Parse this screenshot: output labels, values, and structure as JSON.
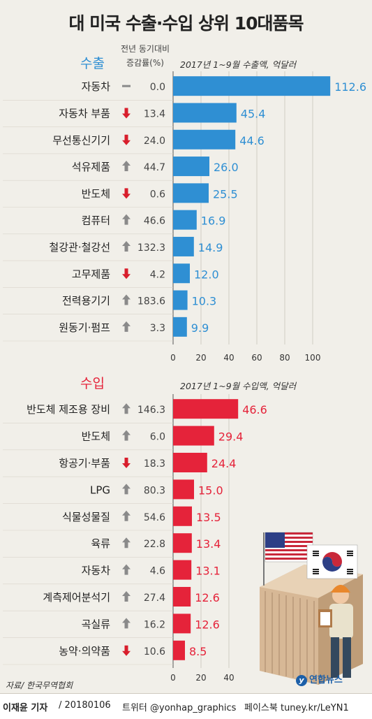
{
  "title": "대 미국 수출·수입 상위 10대품목",
  "change_header": [
    "전년 동기대비",
    "증감률(%)"
  ],
  "colors": {
    "export": "#2f8fd3",
    "import": "#e5233a",
    "arrow_up": "#8a8a8a",
    "arrow_down": "#d81e2c",
    "background": "#f1efe9"
  },
  "source": "자료/ 한국무역협회",
  "brand": "연합뉴스",
  "credit": {
    "author": "이재윤 기자",
    "date": "/ 20180106",
    "twitter": "트위터 @yonhap_graphics",
    "facebook": "페이스북 tuney.kr/LeYN1"
  },
  "chart_data": [
    {
      "type": "bar",
      "orientation": "horizontal",
      "section_label": "수출",
      "subtitle": "2017년 1~9월 수출액, 억달러",
      "categories": [
        "자동차",
        "자동차 부품",
        "무선통신기기",
        "석유제품",
        "반도체",
        "컴퓨터",
        "철강관·철강선",
        "고무제품",
        "전력용기기",
        "원동기·펌프"
      ],
      "values": [
        112.6,
        45.4,
        44.6,
        26.0,
        25.5,
        16.9,
        14.9,
        12.0,
        10.3,
        9.9
      ],
      "value_labels": [
        "112.6",
        "45.4",
        "44.6",
        "26.0",
        "25.5",
        "16.9",
        "14.9",
        "12.0",
        "10.3",
        "9.9"
      ],
      "change_direction": [
        "flat",
        "down",
        "down",
        "up",
        "down",
        "up",
        "up",
        "down",
        "up",
        "up"
      ],
      "change_labels": [
        "0.0",
        "13.4",
        "24.0",
        "44.7",
        "0.6",
        "46.6",
        "132.3",
        "4.2",
        "183.6",
        "3.3"
      ],
      "xlim": [
        0,
        115
      ],
      "xticks": [
        "0",
        "20",
        "40",
        "60",
        "80",
        "100"
      ],
      "xtick_values": [
        0,
        20,
        40,
        60,
        80,
        100
      ]
    },
    {
      "type": "bar",
      "orientation": "horizontal",
      "section_label": "수입",
      "subtitle": "2017년 1~9월 수입액, 억달러",
      "categories": [
        "반도체 제조용 장비",
        "반도체",
        "항공기·부품",
        "LPG",
        "식물성물질",
        "육류",
        "자동차",
        "계측제어분석기",
        "곡실류",
        "농약·의약품"
      ],
      "values": [
        46.6,
        29.4,
        24.4,
        15.0,
        13.5,
        13.4,
        13.1,
        12.6,
        12.6,
        8.5
      ],
      "value_labels": [
        "46.6",
        "29.4",
        "24.4",
        "15.0",
        "13.5",
        "13.4",
        "13.1",
        "12.6",
        "12.6",
        "8.5"
      ],
      "change_direction": [
        "up",
        "up",
        "down",
        "up",
        "up",
        "up",
        "up",
        "up",
        "up",
        "down"
      ],
      "change_labels": [
        "146.3",
        "6.0",
        "18.3",
        "80.3",
        "54.6",
        "22.8",
        "4.6",
        "27.4",
        "16.2",
        "10.6"
      ],
      "xlim": [
        0,
        115
      ],
      "xticks": [
        "0",
        "20",
        "40"
      ],
      "xtick_values": [
        0,
        20,
        40
      ]
    }
  ]
}
